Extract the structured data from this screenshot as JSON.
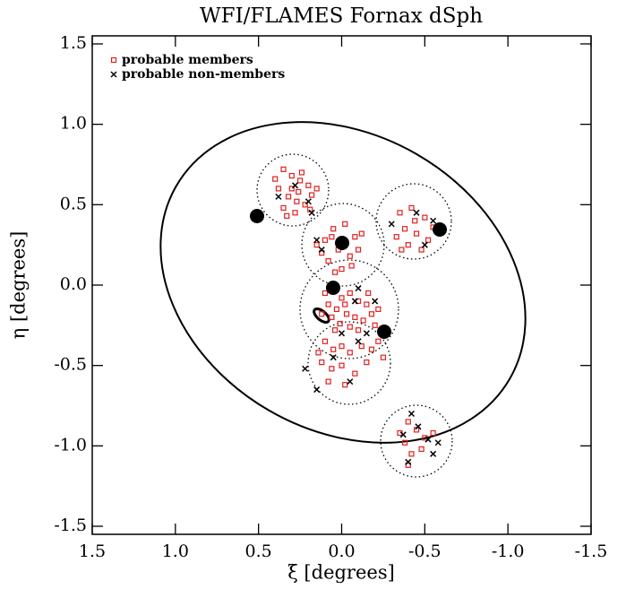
{
  "chart_data": {
    "type": "scatter",
    "title": "WFI/FLAMES Fornax dSph",
    "x_label": "ξ [degrees]",
    "y_label": "η [degrees]",
    "xlim": [
      1.5,
      -1.5
    ],
    "ylim": [
      -1.55,
      1.55
    ],
    "xticks": [
      1.5,
      {
        "value": 1.0,
        "label": "1.0"
      },
      0.5,
      {
        "value": 0.0,
        "label": "0.0"
      },
      -0.5,
      {
        "value": -1.0,
        "label": "-1.0"
      },
      -1.5
    ],
    "yticks": [
      1.5,
      {
        "value": 1.0,
        "label": "1.0"
      },
      0.5,
      {
        "value": 0.0,
        "label": "0.0"
      },
      -0.5,
      {
        "value": -1.0,
        "label": "-1.0"
      },
      -1.5
    ],
    "legend_position": "upper left",
    "series": [
      {
        "name": "probable members",
        "color": "#e02020",
        "marker": "square",
        "x": [
          0.35,
          0.3,
          0.25,
          0.2,
          0.38,
          0.32,
          0.27,
          0.22,
          0.18,
          0.35,
          0.28,
          0.4,
          0.15,
          0.24,
          0.3,
          0.19,
          0.33,
          0.26,
          0.05,
          -0.02,
          -0.08,
          0.1,
          0.02,
          -0.05,
          0.08,
          0.0,
          -0.1,
          0.12,
          0.04,
          -0.06,
          0.15,
          -0.12,
          0.06,
          -0.35,
          -0.42,
          -0.5,
          -0.38,
          -0.45,
          -0.55,
          -0.4,
          -0.48,
          -0.33,
          -0.52,
          -0.44,
          -0.36,
          0.1,
          0.05,
          0.0,
          -0.05,
          -0.1,
          -0.15,
          0.08,
          0.03,
          -0.03,
          -0.08,
          -0.13,
          -0.18,
          0.06,
          0.01,
          -0.05,
          -0.1,
          -0.2,
          -0.22,
          0.12,
          -0.16,
          -0.02,
          0.04,
          0.1,
          0.05,
          0.0,
          -0.05,
          -0.12,
          0.12,
          0.06,
          0.0,
          -0.08,
          -0.15,
          0.08,
          -0.02,
          -0.18,
          0.14,
          -0.22,
          -0.25,
          -0.4,
          -0.45,
          -0.5,
          -0.38,
          -0.48,
          -0.55,
          -0.42,
          -0.35,
          -0.4
        ],
        "values": [
          0.72,
          0.68,
          0.65,
          0.62,
          0.6,
          0.55,
          0.52,
          0.5,
          0.56,
          0.48,
          0.45,
          0.66,
          0.6,
          0.7,
          0.6,
          0.47,
          0.43,
          0.58,
          0.35,
          0.38,
          0.3,
          0.28,
          0.22,
          0.18,
          0.15,
          0.1,
          0.22,
          0.2,
          0.08,
          0.12,
          0.25,
          0.32,
          0.3,
          0.45,
          0.48,
          0.42,
          0.35,
          0.32,
          0.36,
          0.25,
          0.22,
          0.3,
          0.28,
          0.4,
          0.22,
          -0.05,
          -0.02,
          -0.08,
          -0.05,
          -0.1,
          -0.12,
          -0.12,
          -0.15,
          -0.18,
          -0.2,
          -0.22,
          -0.18,
          -0.2,
          -0.24,
          -0.26,
          -0.28,
          -0.25,
          -0.15,
          -0.18,
          -0.05,
          -0.12,
          -0.28,
          -0.35,
          -0.4,
          -0.38,
          -0.42,
          -0.38,
          -0.48,
          -0.52,
          -0.5,
          -0.55,
          -0.48,
          -0.6,
          -0.62,
          -0.4,
          -0.42,
          -0.35,
          -0.45,
          -0.85,
          -0.9,
          -0.95,
          -0.98,
          -1.02,
          -0.92,
          -1.05,
          -0.92,
          -1.12
        ]
      },
      {
        "name": "probable non-members",
        "color": "#000000",
        "marker": "x",
        "x": [
          0.38,
          0.28,
          0.2,
          0.18,
          0.15,
          0.12,
          -0.3,
          -0.45,
          -0.55,
          -0.5,
          -0.1,
          -0.08,
          -0.2,
          -0.15,
          0.0,
          -0.1,
          0.05,
          -0.05,
          0.15,
          0.22,
          -0.42,
          -0.46,
          -0.52,
          -0.58,
          -0.4,
          -0.37,
          -0.55
        ],
        "values": [
          0.55,
          0.62,
          0.52,
          0.45,
          0.28,
          0.22,
          0.38,
          0.45,
          0.4,
          0.25,
          -0.02,
          -0.1,
          -0.1,
          -0.3,
          -0.3,
          -0.35,
          -0.45,
          -0.6,
          -0.65,
          -0.52,
          -0.8,
          -0.88,
          -0.96,
          -0.98,
          -1.1,
          -0.93,
          -1.05
        ]
      }
    ]
  }
}
